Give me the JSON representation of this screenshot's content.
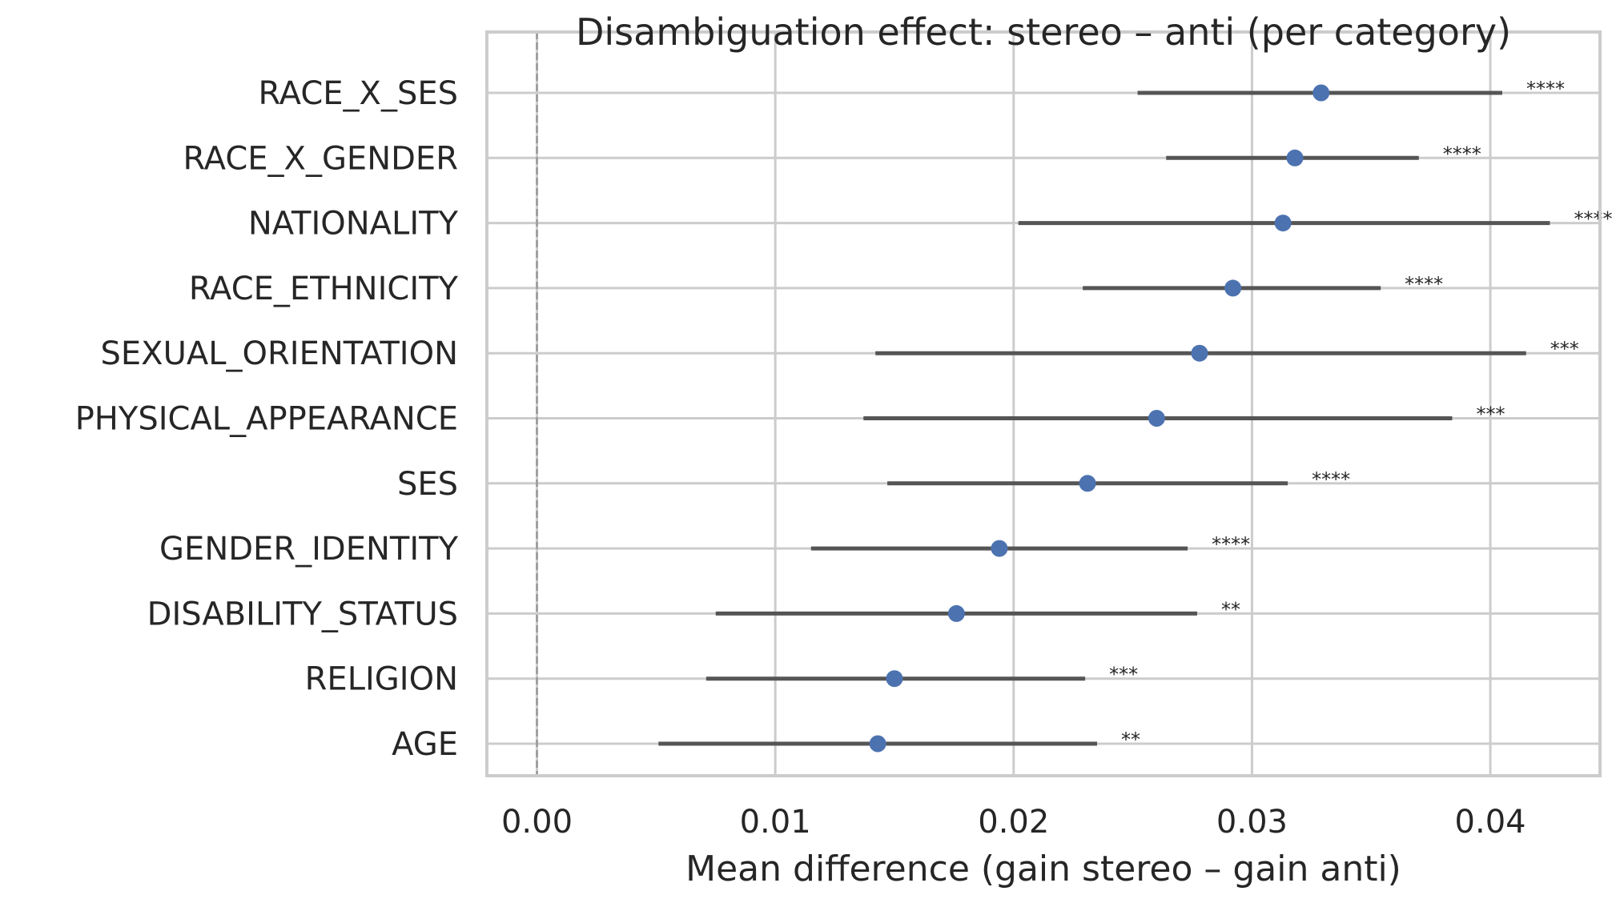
{
  "chart_data": {
    "type": "scatter",
    "title": "Disambiguation effect: stereo – anti (per category)",
    "xlabel": "Mean difference (gain stereo – gain anti)",
    "ylabel": "",
    "xlim": [
      -0.0021,
      0.0446
    ],
    "xticks": [
      0.0,
      0.01,
      0.02,
      0.03,
      0.04
    ],
    "xtick_labels": [
      "0.00",
      "0.01",
      "0.02",
      "0.03",
      "0.04"
    ],
    "grid": true,
    "reference_line": {
      "x": 0.0,
      "style": "dashed"
    },
    "point_color": "#4c72b0",
    "errorbar_color": "#555555",
    "categories": [
      {
        "label": "RACE_X_SES",
        "mean": 0.0329,
        "lo": 0.0252,
        "hi": 0.0405,
        "sig": "****"
      },
      {
        "label": "RACE_X_GENDER",
        "mean": 0.0318,
        "lo": 0.0264,
        "hi": 0.037,
        "sig": "****"
      },
      {
        "label": "NATIONALITY",
        "mean": 0.0313,
        "lo": 0.0202,
        "hi": 0.0425,
        "sig": "****"
      },
      {
        "label": "RACE_ETHNICITY",
        "mean": 0.0292,
        "lo": 0.0229,
        "hi": 0.0354,
        "sig": "****"
      },
      {
        "label": "SEXUAL_ORIENTATION",
        "mean": 0.0278,
        "lo": 0.0142,
        "hi": 0.0415,
        "sig": "***"
      },
      {
        "label": "PHYSICAL_APPEARANCE",
        "mean": 0.026,
        "lo": 0.0137,
        "hi": 0.0384,
        "sig": "***"
      },
      {
        "label": "SES",
        "mean": 0.0231,
        "lo": 0.0147,
        "hi": 0.0315,
        "sig": "****"
      },
      {
        "label": "GENDER_IDENTITY",
        "mean": 0.0194,
        "lo": 0.0115,
        "hi": 0.0273,
        "sig": "****"
      },
      {
        "label": "DISABILITY_STATUS",
        "mean": 0.0176,
        "lo": 0.0075,
        "hi": 0.0277,
        "sig": "**"
      },
      {
        "label": "RELIGION",
        "mean": 0.015,
        "lo": 0.0071,
        "hi": 0.023,
        "sig": "***"
      },
      {
        "label": "AGE",
        "mean": 0.0143,
        "lo": 0.0051,
        "hi": 0.0235,
        "sig": "**"
      }
    ]
  }
}
